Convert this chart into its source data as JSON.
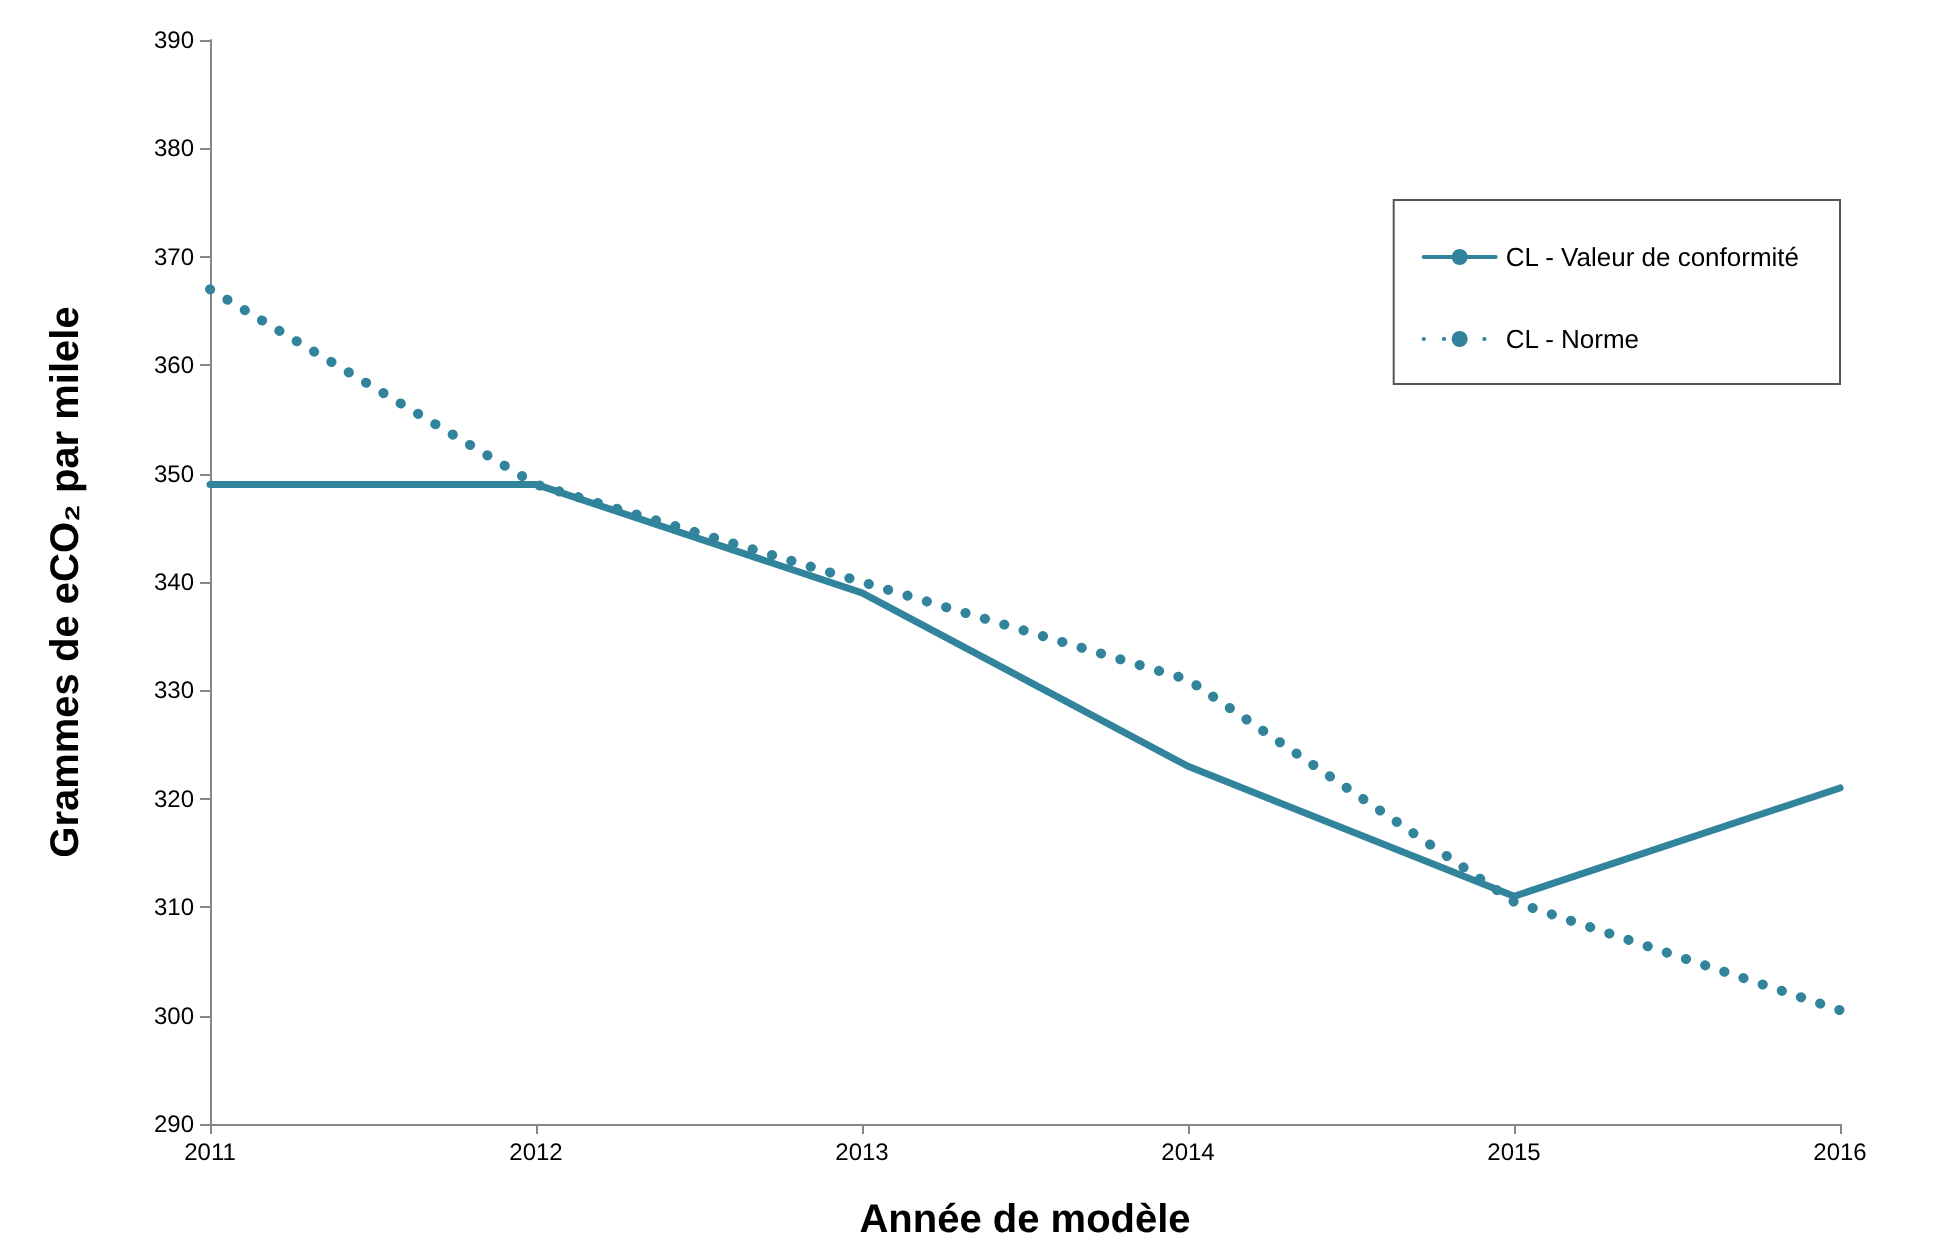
{
  "chart_data": {
    "type": "line",
    "xlabel": "Année de modèle",
    "ylabel": "Grammes de eCO₂ par milele",
    "x": [
      2011,
      2012,
      2013,
      2014,
      2015,
      2016
    ],
    "series": [
      {
        "name": "CL - Valeur de conformité",
        "color": "#31849b",
        "line_style": "solid",
        "values": [
          349,
          349,
          339,
          323,
          311,
          321
        ]
      },
      {
        "name": "CL - Norme",
        "color": "#31849b",
        "line_style": "dotted",
        "values": [
          367,
          349,
          340,
          331,
          310.5,
          300.5
        ]
      }
    ],
    "xlim": [
      2011,
      2016
    ],
    "xticks": [
      2011,
      2012,
      2013,
      2014,
      2015,
      2016
    ],
    "ylim": [
      290,
      390
    ],
    "yticks": [
      290,
      300,
      310,
      320,
      330,
      340,
      350,
      360,
      370,
      380,
      390
    ],
    "grid": false,
    "legend": "top right",
    "marker": "none"
  }
}
